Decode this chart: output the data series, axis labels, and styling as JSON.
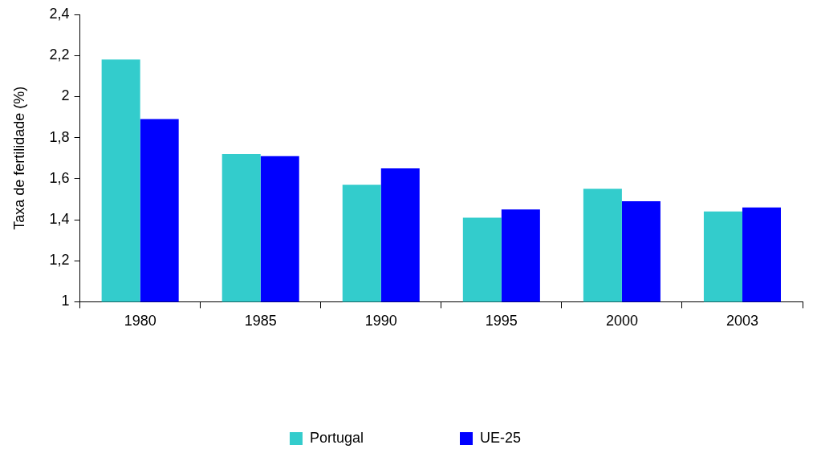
{
  "chart_data": {
    "type": "bar",
    "ylabel": "Taxa de fertilidade (%)",
    "categories": [
      "1980",
      "1985",
      "1990",
      "1995",
      "2000",
      "2003"
    ],
    "series": [
      {
        "name": "Portugal",
        "color": "#33cccc",
        "values": [
          2.18,
          1.72,
          1.57,
          1.41,
          1.55,
          1.44
        ]
      },
      {
        "name": "UE-25",
        "color": "#0000ff",
        "values": [
          1.89,
          1.71,
          1.65,
          1.45,
          1.49,
          1.46
        ]
      }
    ],
    "ylim": [
      1,
      2.4
    ],
    "yticks": [
      1,
      {
        "value": 1.2,
        "label": "1,2"
      },
      {
        "value": 1.4,
        "label": "1,4"
      },
      {
        "value": 1.6,
        "label": "1,6"
      },
      {
        "value": 1.8,
        "label": "1,8"
      },
      2,
      {
        "value": 2.2,
        "label": "2,2"
      },
      {
        "value": 2.4,
        "label": "2,4"
      }
    ],
    "grid": false,
    "legend": "bottom"
  }
}
